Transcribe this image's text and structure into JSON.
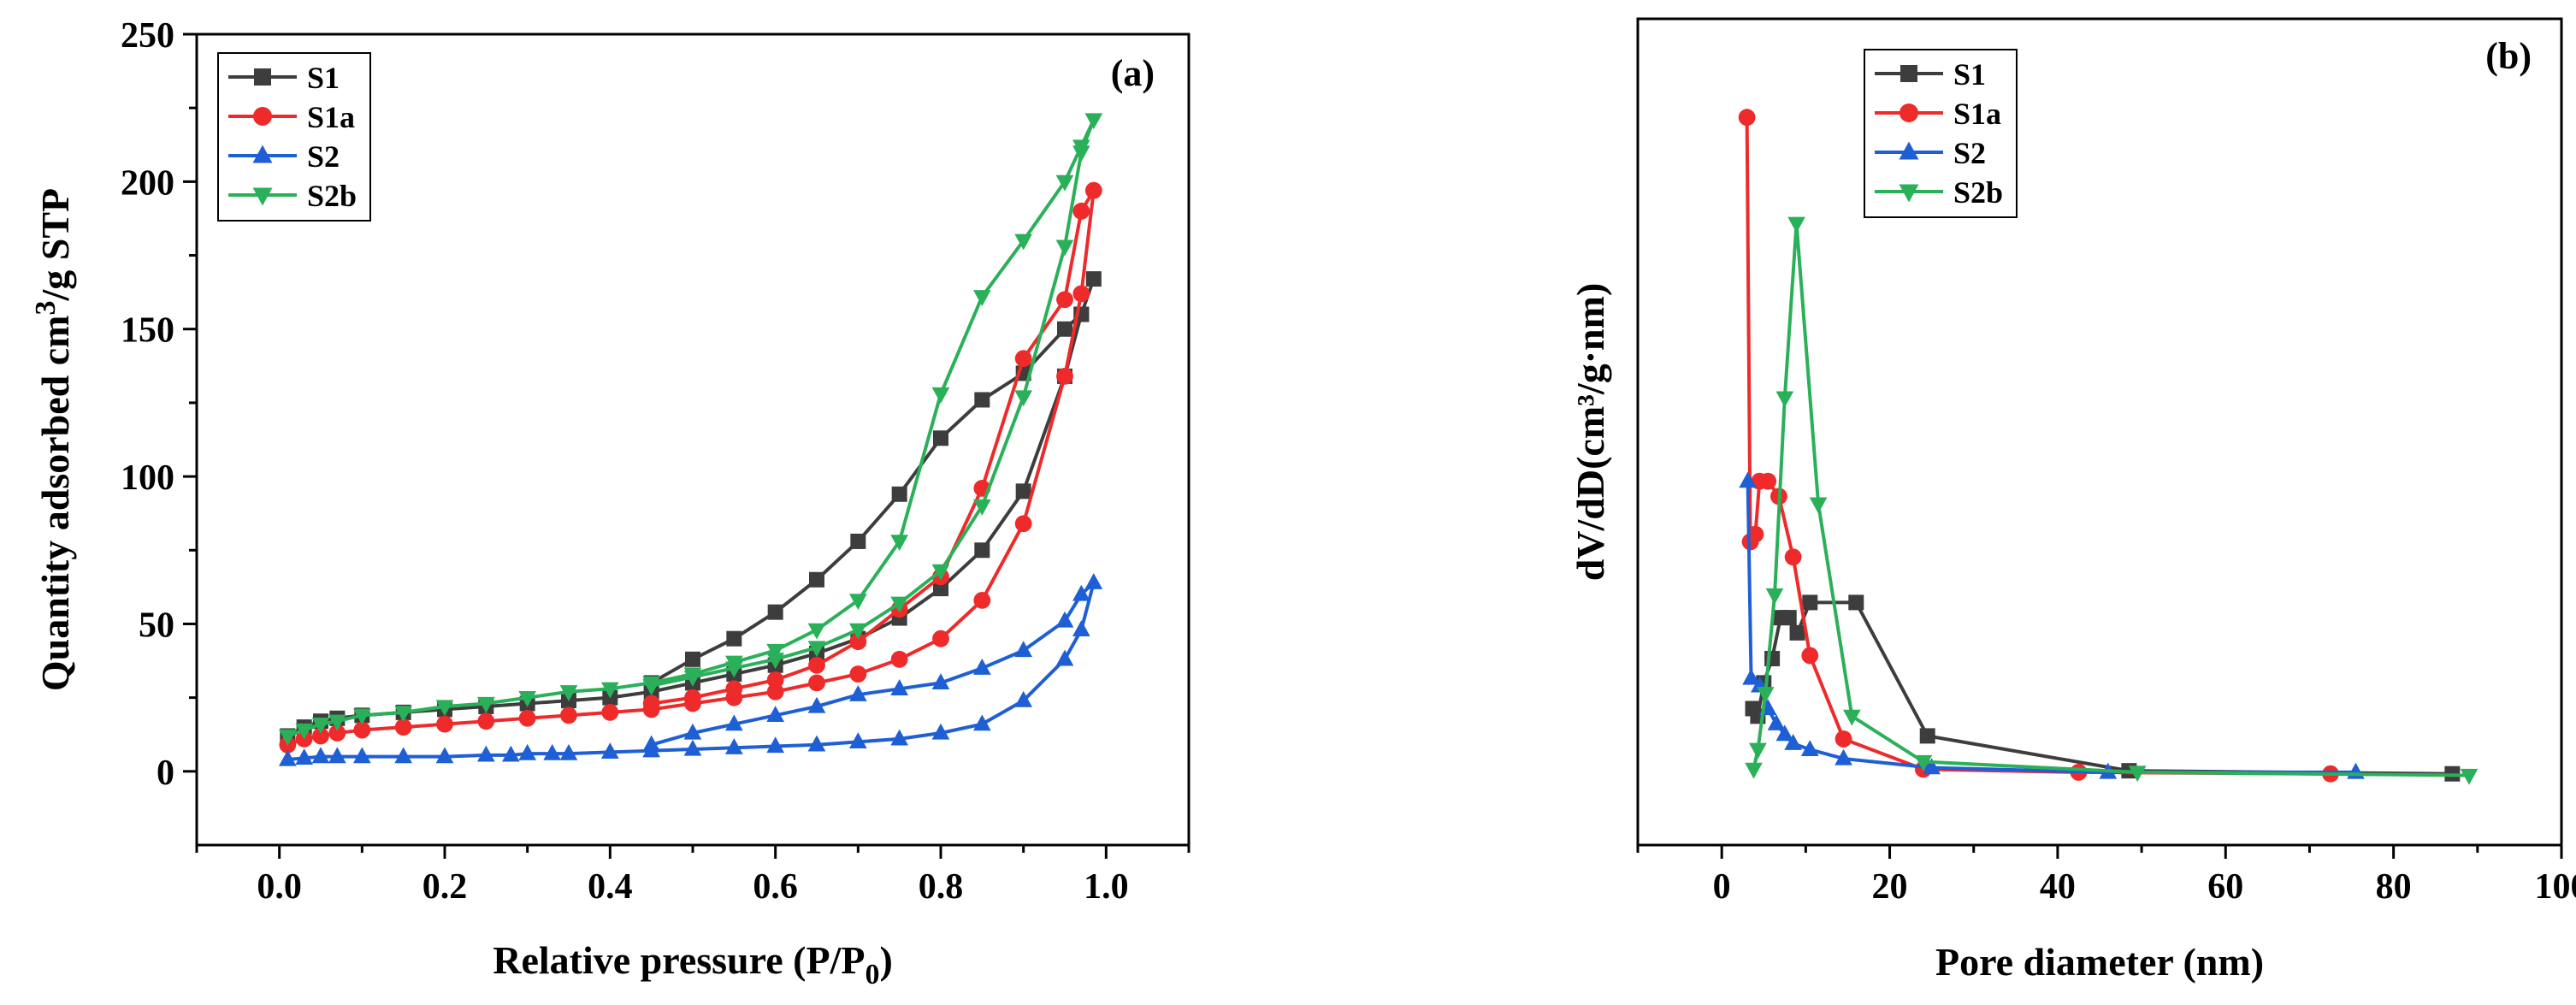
{
  "chart_data": [
    {
      "type": "line",
      "panel_label": "(a)",
      "xlabel": "Relative pressure (P/P",
      "xlabel_sub": "0",
      "xlabel_end": ")",
      "ylabel": "Quantity adsorbed cm",
      "ylabel_sup": "3",
      "ylabel_end": "/g STP",
      "xlim": [
        -0.1,
        1.1
      ],
      "ylim": [
        -25,
        250
      ],
      "xticks": [
        "0.0",
        "0.2",
        "0.4",
        "0.6",
        "0.8",
        "1.0"
      ],
      "yticks": [
        "0",
        "50",
        "100",
        "150",
        "200",
        "250"
      ],
      "legend": "top-left",
      "series": [
        {
          "name": "S1",
          "color": "#3d3d3d",
          "marker": "square",
          "x": [
            0.01,
            0.03,
            0.05,
            0.07,
            0.1,
            0.15,
            0.2,
            0.25,
            0.3,
            0.35,
            0.4,
            0.45,
            0.5,
            0.55,
            0.6,
            0.65,
            0.7,
            0.75,
            0.8,
            0.85,
            0.9,
            0.95,
            0.97,
            0.985,
            0.97,
            0.95,
            0.9,
            0.85,
            0.8,
            0.75,
            0.7,
            0.65,
            0.6,
            0.55,
            0.5,
            0.45
          ],
          "y": [
            12,
            15,
            17,
            18,
            19,
            20,
            21,
            22,
            23,
            24,
            25,
            27,
            30,
            33,
            36,
            40,
            45,
            52,
            62,
            75,
            95,
            134,
            155,
            167,
            155,
            150,
            135,
            126,
            113,
            94,
            78,
            65,
            54,
            45,
            38,
            30
          ]
        },
        {
          "name": "S1a",
          "color": "#ee2a2a",
          "marker": "circle",
          "x": [
            0.01,
            0.03,
            0.05,
            0.07,
            0.1,
            0.15,
            0.2,
            0.25,
            0.3,
            0.35,
            0.4,
            0.45,
            0.5,
            0.55,
            0.6,
            0.65,
            0.7,
            0.75,
            0.8,
            0.85,
            0.9,
            0.95,
            0.97,
            0.985,
            0.97,
            0.95,
            0.9,
            0.85,
            0.8,
            0.75,
            0.7,
            0.65,
            0.6,
            0.55,
            0.5,
            0.45
          ],
          "y": [
            9,
            11,
            12,
            13,
            14,
            15,
            16,
            17,
            18,
            19,
            20,
            21,
            23,
            25,
            27,
            30,
            33,
            38,
            45,
            58,
            84,
            134,
            162,
            197,
            190,
            160,
            140,
            96,
            66,
            55,
            44,
            36,
            31,
            28,
            25,
            23
          ]
        },
        {
          "name": "S2",
          "color": "#1f5fd6",
          "marker": "triangle-up",
          "x": [
            0.01,
            0.03,
            0.05,
            0.07,
            0.1,
            0.15,
            0.2,
            0.25,
            0.28,
            0.3,
            0.33,
            0.35,
            0.4,
            0.45,
            0.5,
            0.55,
            0.6,
            0.65,
            0.7,
            0.75,
            0.8,
            0.85,
            0.9,
            0.95,
            0.97,
            0.985,
            0.97,
            0.95,
            0.9,
            0.85,
            0.8,
            0.75,
            0.7,
            0.65,
            0.6,
            0.55,
            0.5,
            0.45
          ],
          "y": [
            4,
            4.5,
            5,
            5,
            5,
            5,
            5,
            5.5,
            5.5,
            6,
            6,
            6,
            6.5,
            7,
            7.5,
            8,
            8.5,
            9,
            10,
            11,
            13,
            16,
            24,
            38,
            48,
            64,
            60,
            51,
            41,
            35,
            30,
            28,
            26,
            22,
            19,
            16,
            13,
            9
          ]
        },
        {
          "name": "S2b",
          "color": "#2bb05a",
          "marker": "triangle-down",
          "x": [
            0.01,
            0.03,
            0.05,
            0.07,
            0.1,
            0.15,
            0.2,
            0.25,
            0.3,
            0.35,
            0.4,
            0.45,
            0.5,
            0.55,
            0.6,
            0.65,
            0.7,
            0.75,
            0.8,
            0.85,
            0.9,
            0.95,
            0.97,
            0.985,
            0.97,
            0.95,
            0.9,
            0.85,
            0.8,
            0.75,
            0.7,
            0.65,
            0.6,
            0.55,
            0.5,
            0.45
          ],
          "y": [
            12,
            14,
            16,
            17,
            19,
            20,
            22,
            23,
            25,
            27,
            28,
            30,
            33,
            37,
            41,
            48,
            58,
            78,
            128,
            161,
            180,
            200,
            212,
            221,
            210,
            178,
            127,
            90,
            68,
            57,
            48,
            42,
            38,
            35,
            32,
            29
          ]
        }
      ]
    },
    {
      "type": "line",
      "panel_label": "(b)",
      "xlabel": "Pore diameter (nm)",
      "ylabel": "dV/dD(cm³/g·nm)",
      "xlim": [
        -10,
        100
      ],
      "ylim": [
        -0.45,
        5.0
      ],
      "xticks": [
        "0",
        "20",
        "40",
        "60",
        "80",
        "100"
      ],
      "legend": "top-left",
      "series": [
        {
          "name": "S1",
          "color": "#3d3d3d",
          "marker": "square",
          "x": [
            3.7,
            4.3,
            5.0,
            6.0,
            7.0,
            8.0,
            9.0,
            10.5,
            16.0,
            24.5,
            48.5,
            87.0
          ],
          "y": [
            0.45,
            0.4,
            0.62,
            0.78,
            1.05,
            1.05,
            0.95,
            1.15,
            1.15,
            0.27,
            0.04,
            0.02
          ]
        },
        {
          "name": "S1a",
          "color": "#ee2a2a",
          "marker": "circle",
          "x": [
            3.0,
            3.4,
            4.0,
            4.5,
            5.5,
            6.8,
            8.5,
            10.5,
            14.5,
            24.0,
            42.5,
            72.5
          ],
          "y": [
            4.35,
            1.55,
            1.6,
            1.95,
            1.95,
            1.85,
            1.45,
            0.8,
            0.25,
            0.05,
            0.03,
            0.02
          ]
        },
        {
          "name": "S2",
          "color": "#1f5fd6",
          "marker": "triangle-up",
          "x": [
            3.1,
            3.5,
            4.5,
            5.5,
            6.5,
            7.5,
            8.5,
            10.5,
            14.5,
            25.0,
            46.0,
            75.5
          ],
          "y": [
            1.95,
            0.65,
            0.6,
            0.45,
            0.35,
            0.28,
            0.22,
            0.18,
            0.12,
            0.06,
            0.03,
            0.03
          ]
        },
        {
          "name": "S2b",
          "color": "#2bb05a",
          "marker": "triangle-down",
          "x": [
            3.8,
            4.3,
            5.2,
            6.3,
            7.5,
            8.9,
            11.5,
            15.5,
            24.0,
            49.5,
            89.0
          ],
          "y": [
            0.05,
            0.18,
            0.55,
            1.2,
            2.5,
            3.65,
            1.8,
            0.4,
            0.1,
            0.03,
            0.01
          ]
        }
      ]
    }
  ]
}
